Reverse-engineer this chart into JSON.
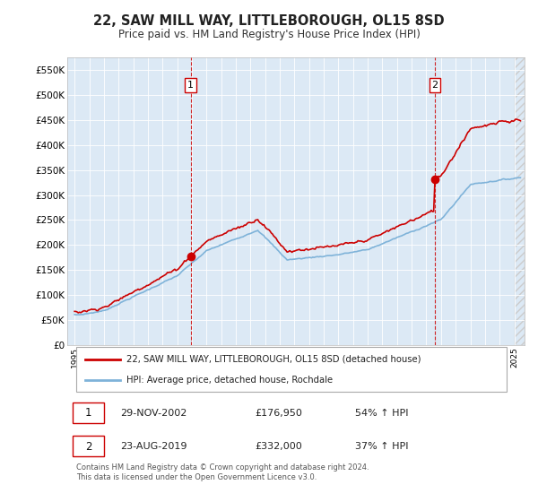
{
  "title": "22, SAW MILL WAY, LITTLEBOROUGH, OL15 8SD",
  "subtitle": "Price paid vs. HM Land Registry's House Price Index (HPI)",
  "background_color": "#ffffff",
  "plot_bg_color": "#dce9f5",
  "hpi_color": "#7fb3d9",
  "price_color": "#cc0000",
  "vline_color": "#cc0000",
  "t1": 2002.9167,
  "t2": 2019.5833,
  "sale1_price": 176950,
  "sale2_price": 332000,
  "legend1": "22, SAW MILL WAY, LITTLEBOROUGH, OL15 8SD (detached house)",
  "legend2": "HPI: Average price, detached house, Rochdale",
  "note1_date": "29-NOV-2002",
  "note1_price": "£176,950",
  "note1_hpi": "54% ↑ HPI",
  "note2_date": "23-AUG-2019",
  "note2_price": "£332,000",
  "note2_hpi": "37% ↑ HPI",
  "footer": "Contains HM Land Registry data © Crown copyright and database right 2024.\nThis data is licensed under the Open Government Licence v3.0.",
  "ytick_vals": [
    0,
    50000,
    100000,
    150000,
    200000,
    250000,
    300000,
    350000,
    400000,
    450000,
    500000,
    550000
  ],
  "ytick_labels": [
    "£0",
    "£50K",
    "£100K",
    "£150K",
    "£200K",
    "£250K",
    "£300K",
    "£350K",
    "£400K",
    "£450K",
    "£500K",
    "£550K"
  ],
  "ylim": [
    0,
    575000
  ],
  "xlim_left": 1994.5,
  "xlim_right": 2025.7
}
